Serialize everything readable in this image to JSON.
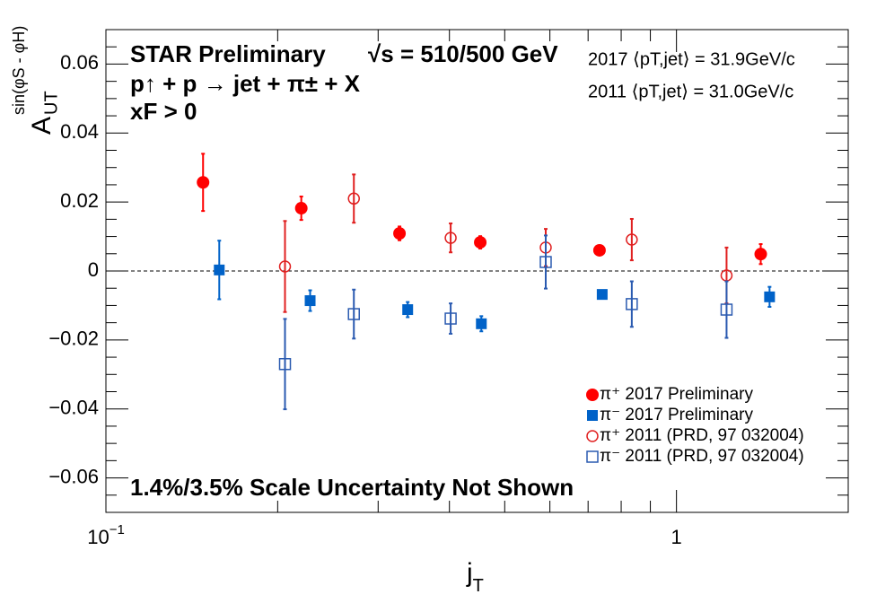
{
  "chart_data": {
    "type": "scatter",
    "log_x": true,
    "xlim": [
      0.1,
      2
    ],
    "ylim": [
      -0.07,
      0.07
    ],
    "xticks": [
      {
        "value": 0.1,
        "label": "10",
        "sup": "−1"
      },
      1
    ],
    "xticks_minor": [
      0.2,
      0.3,
      0.4,
      0.5,
      0.6,
      0.7,
      0.8,
      0.9,
      2
    ],
    "yticks": [
      {
        "value": -0.06,
        "label": "−0.06"
      },
      {
        "value": -0.04,
        "label": "−0.04"
      },
      {
        "value": -0.02,
        "label": "−0.02"
      },
      0,
      0.02,
      0.04,
      0.06
    ],
    "yticks_minor": [
      -0.07,
      -0.065,
      -0.055,
      -0.05,
      -0.045,
      -0.035,
      -0.03,
      -0.025,
      -0.015,
      -0.01,
      -0.005,
      0.005,
      0.01,
      0.015,
      0.025,
      0.03,
      0.035,
      0.045,
      0.05,
      0.055,
      0.065,
      0.07
    ],
    "reference_line": 0,
    "xlabel": {
      "main": "j",
      "sub": "T"
    },
    "ylabel": {
      "main": "A",
      "sub": "UT",
      "sup": "sin(φS - φH)"
    },
    "annotations": [
      "STAR Preliminary",
      "√s = 510/500 GeV",
      "p↑ + p → jet + π± + X",
      "xF > 0",
      "2017 ⟨pT,jet⟩ = 31.9GeV/c",
      "2011 ⟨pT,jet⟩ = 31.0GeV/c",
      "1.4%/3.5% Scale Uncertainty Not Shown"
    ],
    "legend": "lower right",
    "series": [
      {
        "name": "π⁺ 2017 Preliminary",
        "color": "#ff0000",
        "marker": "filled-circle",
        "x": [
          0.148,
          0.22,
          0.327,
          0.453,
          0.733,
          1.405
        ],
        "values": [
          0.0257,
          0.0182,
          0.0109,
          0.0083,
          0.006,
          0.0049
        ],
        "errors": [
          0.0083,
          0.0034,
          0.002,
          0.0018,
          0.0005,
          0.0029
        ]
      },
      {
        "name": "π⁻ 2017 Preliminary",
        "color": "#0062c8",
        "marker": "filled-square",
        "x": [
          0.158,
          0.228,
          0.338,
          0.455,
          0.741,
          1.456
        ],
        "values": [
          0.0003,
          -0.0086,
          -0.0112,
          -0.0153,
          -0.0068,
          -0.0075
        ],
        "errors": [
          0.0085,
          0.003,
          0.0022,
          0.0022,
          0.0005,
          0.0029
        ]
      },
      {
        "name": "π⁺ 2011 (PRD, 97 032004)",
        "color": "#e02020",
        "marker": "open-circle",
        "x": [
          0.206,
          0.272,
          0.402,
          0.59,
          0.835,
          1.224
        ],
        "values": [
          0.0013,
          0.021,
          0.0096,
          0.0068,
          0.0091,
          -0.0013
        ],
        "errors": [
          0.0132,
          0.007,
          0.0042,
          0.0054,
          0.006,
          0.0081
        ]
      },
      {
        "name": "π⁻ 2011 (PRD, 97 032004)",
        "color": "#2a5ab0",
        "marker": "open-square",
        "x": [
          0.206,
          0.272,
          0.402,
          0.59,
          0.835,
          1.224
        ],
        "values": [
          -0.027,
          -0.0125,
          -0.0138,
          0.0026,
          -0.0096,
          -0.0112
        ],
        "errors": [
          0.0131,
          0.0071,
          0.0044,
          0.0077,
          0.0066,
          0.0082
        ]
      }
    ]
  }
}
